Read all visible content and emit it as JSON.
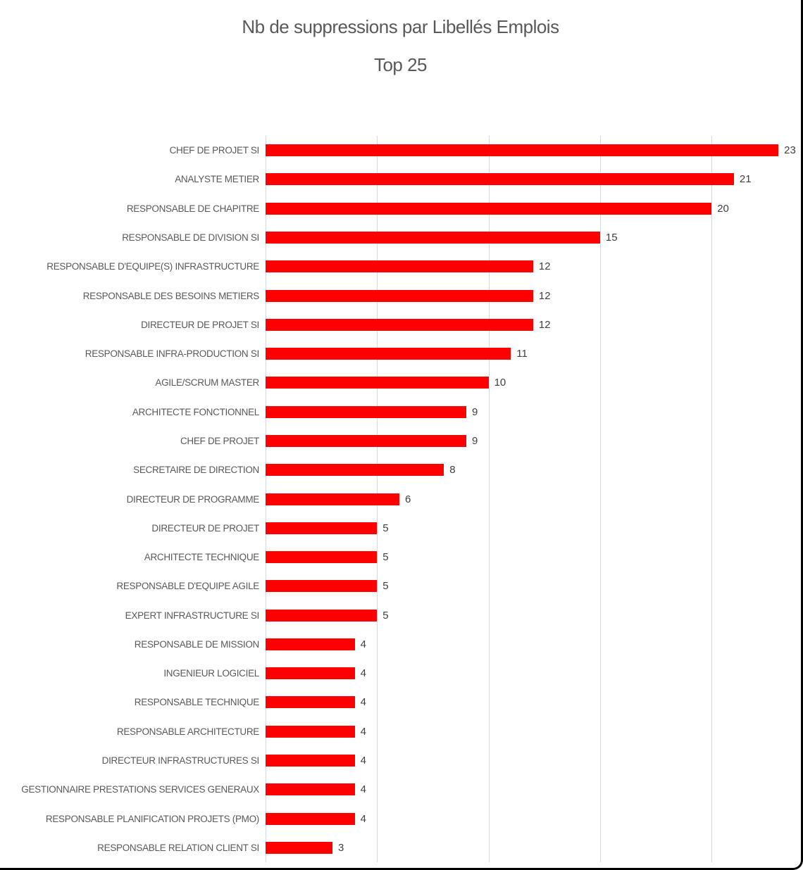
{
  "colors": {
    "bar": "#ff0000",
    "category_label": "#595959",
    "value_label": "#404040",
    "gridline": "#d9d9d9",
    "frame_border": "#000000",
    "background": "#ffffff"
  },
  "chart_data": {
    "type": "bar",
    "orientation": "horizontal",
    "title": "Nb de suppressions par Libellés Emplois",
    "subtitle": "Top 25",
    "xlim": [
      0,
      25
    ],
    "gridline_interval": 5,
    "grid": true,
    "legend": false,
    "value_labels_shown": true,
    "categories": [
      "CHEF DE PROJET SI",
      "ANALYSTE METIER",
      "RESPONSABLE DE CHAPITRE",
      "RESPONSABLE DE DIVISION SI",
      "RESPONSABLE D'EQUIPE(S) INFRASTRUCTURE",
      "RESPONSABLE DES BESOINS METIERS",
      "DIRECTEUR DE PROJET SI",
      "RESPONSABLE INFRA-PRODUCTION SI",
      "AGILE/SCRUM MASTER",
      "ARCHITECTE FONCTIONNEL",
      "CHEF DE PROJET",
      "SECRETAIRE DE DIRECTION",
      "DIRECTEUR DE PROGRAMME",
      "DIRECTEUR DE PROJET",
      "ARCHITECTE TECHNIQUE",
      "RESPONSABLE D'EQUIPE AGILE",
      "EXPERT INFRASTRUCTURE SI",
      "RESPONSABLE DE MISSION",
      "INGENIEUR LOGICIEL",
      "RESPONSABLE TECHNIQUE",
      "RESPONSABLE ARCHITECTURE",
      "DIRECTEUR INFRASTRUCTURES SI",
      "GESTIONNAIRE PRESTATIONS SERVICES GENERAUX",
      "RESPONSABLE PLANIFICATION PROJETS (PMO)",
      "RESPONSABLE RELATION CLIENT SI"
    ],
    "values": [
      23,
      21,
      20,
      15,
      12,
      12,
      12,
      11,
      10,
      9,
      9,
      8,
      6,
      5,
      5,
      5,
      5,
      4,
      4,
      4,
      4,
      4,
      4,
      4,
      3
    ]
  }
}
